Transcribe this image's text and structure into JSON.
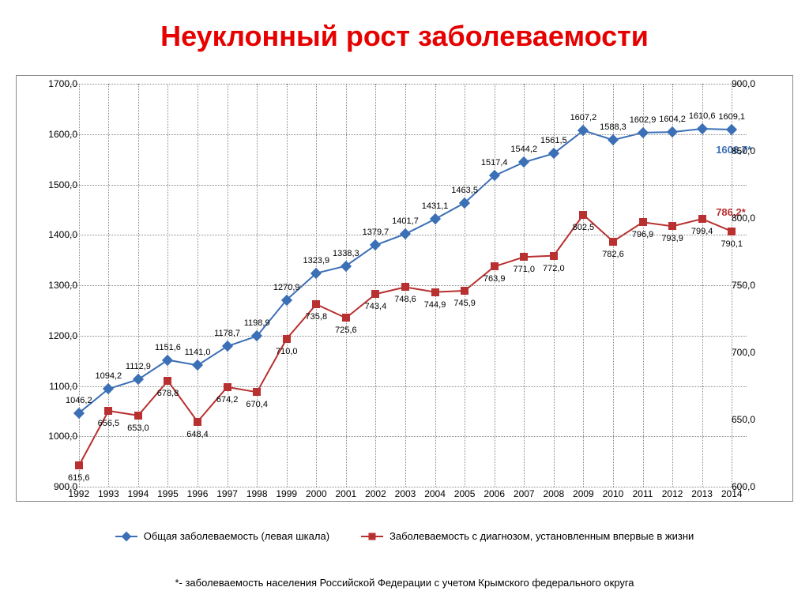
{
  "title": "Неуклонный рост заболеваемости",
  "title_color": "#e60000",
  "footnote": "*- заболеваемость населения  Российской Федерации с учетом Крымского федерального округа",
  "chart": {
    "type": "line",
    "background_color": "#ffffff",
    "grid_color": "#888888",
    "line_width": 2,
    "marker_size": 10,
    "label_fontsize": 11,
    "axis_fontsize": 12,
    "x_categories": [
      "1992",
      "1993",
      "1994",
      "1995",
      "1996",
      "1997",
      "1998",
      "1999",
      "2000",
      "2001",
      "2002",
      "2003",
      "2004",
      "2005",
      "2006",
      "2007",
      "2008",
      "2009",
      "2010",
      "2011",
      "2012",
      "2013",
      "2014"
    ],
    "y_left": {
      "min": 900,
      "max": 1700,
      "step": 100
    },
    "y_right": {
      "min": 600,
      "max": 900,
      "step": 50
    },
    "series1": {
      "name": "Общая заболеваемость  (левая шкала)",
      "color": "#3b6fb6",
      "marker": "diamond",
      "axis": "left",
      "values": [
        1046.2,
        1094.2,
        1112.9,
        1151.6,
        1141.0,
        1178.7,
        1198.9,
        1270.9,
        1323.9,
        1338.3,
        1379.7,
        1401.7,
        1431.1,
        1463.5,
        1517.4,
        1544.2,
        1561.5,
        1607.2,
        1588.3,
        1602.9,
        1604.2,
        1610.6,
        1609.1
      ],
      "labels": [
        "1046,2",
        "1094,2",
        "1112,9",
        "1151,6",
        "1141,0",
        "1178,7",
        "1198,9",
        "1270,9",
        "1323,9",
        "1338,3",
        "1379,7",
        "1401,7",
        "1431,1",
        "1463,5",
        "1517,4",
        "1544,2",
        "1561,5",
        "1607,2",
        "1588,3",
        "1602,9",
        "1604,2",
        "1610,6",
        "1609,1"
      ],
      "end_label": "1606,7*"
    },
    "series2": {
      "name": "Заболеваемость с диагнозом, установленным впервые в жизни",
      "color": "#b83030",
      "marker": "square",
      "axis": "right",
      "values": [
        615.6,
        656.5,
        653.0,
        678.8,
        648.4,
        674.2,
        670.4,
        710.0,
        735.8,
        725.6,
        743.4,
        748.6,
        744.9,
        745.9,
        763.9,
        771.0,
        772.0,
        802.5,
        782.6,
        796.9,
        793.9,
        799.4,
        790.1
      ],
      "labels": [
        "615,6",
        "656,5",
        "653,0",
        "678,8",
        "648,4",
        "674,2",
        "670,4",
        "710,0",
        "735,8",
        "725,6",
        "743,4",
        "748,6",
        "744,9",
        "745,9",
        "763,9",
        "771,0",
        "772,0",
        "802,5",
        "782,6",
        "796,9",
        "793,9",
        "799,4",
        "790,1"
      ],
      "end_label": "786,2*"
    },
    "legend_position": "bottom"
  }
}
